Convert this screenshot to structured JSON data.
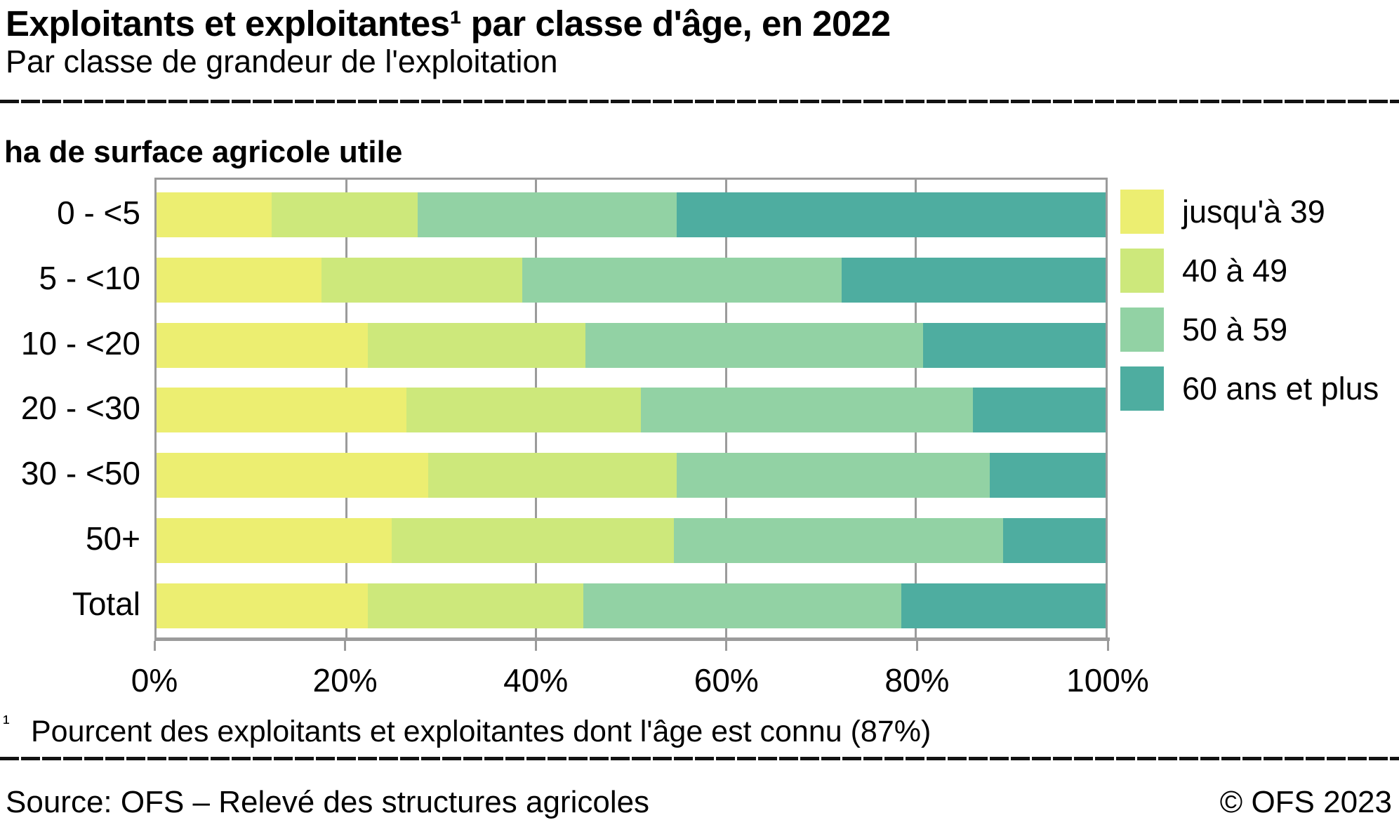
{
  "header": {
    "title": "Exploitants et exploitantes¹ par classe d'âge, en 2022",
    "subtitle": "Par classe de grandeur de l'exploitation"
  },
  "chart_data": {
    "type": "bar",
    "stacked": true,
    "orientation": "horizontal",
    "axis_title": "ha de surface agricole utile",
    "categories": [
      "0 - <5",
      "5 - <10",
      "10 - <20",
      "20 - <30",
      "30 - <50",
      "50+",
      "Total"
    ],
    "series": [
      {
        "name": "jusqu'à 39",
        "color": "#ECEE71",
        "values": [
          12.1,
          17.4,
          22.3,
          26.3,
          28.6,
          24.8,
          22.3
        ]
      },
      {
        "name": "40 à 49",
        "color": "#CDE87B",
        "values": [
          15.4,
          21.1,
          22.9,
          24.7,
          26.2,
          29.7,
          22.7
        ]
      },
      {
        "name": "50 à 59",
        "color": "#92D2A4",
        "values": [
          27.3,
          33.7,
          35.6,
          35.0,
          33.0,
          34.7,
          33.5
        ]
      },
      {
        "name": "60 ans et plus",
        "color": "#4EADA0",
        "values": [
          45.2,
          27.8,
          19.2,
          14.0,
          12.2,
          10.8,
          21.5
        ]
      }
    ],
    "x_ticks": [
      "0%",
      "20%",
      "40%",
      "60%",
      "80%",
      "100%"
    ],
    "xlim": [
      0,
      100
    ],
    "grid": true,
    "grid_color": "#9b9b9b",
    "legend_position": "right"
  },
  "footnote": {
    "marker": "¹",
    "text": "Pourcent des exploitants et exploitantes dont l'âge est connu (87%)"
  },
  "footer": {
    "source": "Source: OFS – Relevé des structures agricoles",
    "copyright": "© OFS 2023"
  }
}
